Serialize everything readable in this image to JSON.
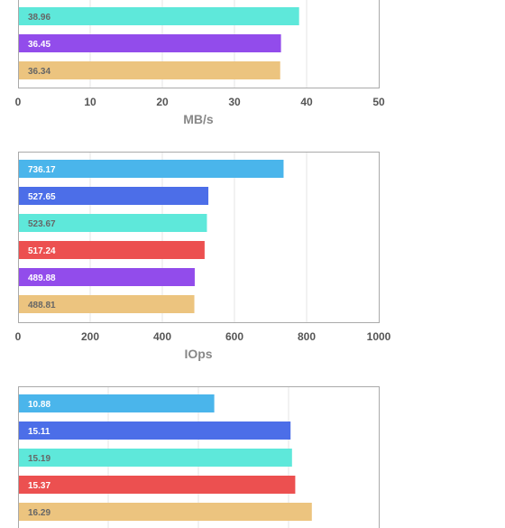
{
  "colors": {
    "blue": "#4ab5eb",
    "royal": "#4c6ee8",
    "teal": "#5ee8da",
    "red": "#ec5050",
    "purple": "#924ceb",
    "tan": "#ecc47f",
    "frame": "#aaaaaa",
    "grid": "#e6e6e6"
  },
  "chart_data": [
    {
      "type": "bar",
      "orientation": "horizontal",
      "values": [
        38.96,
        36.45,
        36.34
      ],
      "colors": [
        "#5ee8da",
        "#924ceb",
        "#ecc47f"
      ],
      "xlabel": "MB/s",
      "xlim": [
        0,
        50
      ],
      "ticks": [
        0,
        10,
        20,
        30,
        40,
        50
      ],
      "tick_labels": [
        "0",
        "10",
        "20",
        "30",
        "40",
        "50"
      ],
      "grid": true,
      "note": "partially visible (top cropped)"
    },
    {
      "type": "bar",
      "orientation": "horizontal",
      "values": [
        736.17,
        527.65,
        523.67,
        517.24,
        489.88,
        488.81
      ],
      "colors": [
        "#4ab5eb",
        "#4c6ee8",
        "#5ee8da",
        "#ec5050",
        "#924ceb",
        "#ecc47f"
      ],
      "xlabel": "IOps",
      "xlim": [
        0,
        1000
      ],
      "ticks": [
        0,
        200,
        400,
        600,
        800,
        1000
      ],
      "tick_labels": [
        "0",
        "200",
        "400",
        "600",
        "800",
        "1000"
      ],
      "grid": true
    },
    {
      "type": "bar",
      "orientation": "horizontal",
      "values": [
        10.88,
        15.11,
        15.19,
        15.37,
        16.29
      ],
      "colors": [
        "#4ab5eb",
        "#4c6ee8",
        "#5ee8da",
        "#ec5050",
        "#ecc47f"
      ],
      "xlabel": "",
      "xlim": [
        0,
        20
      ],
      "grid": true,
      "note": "bottom cropped"
    }
  ]
}
